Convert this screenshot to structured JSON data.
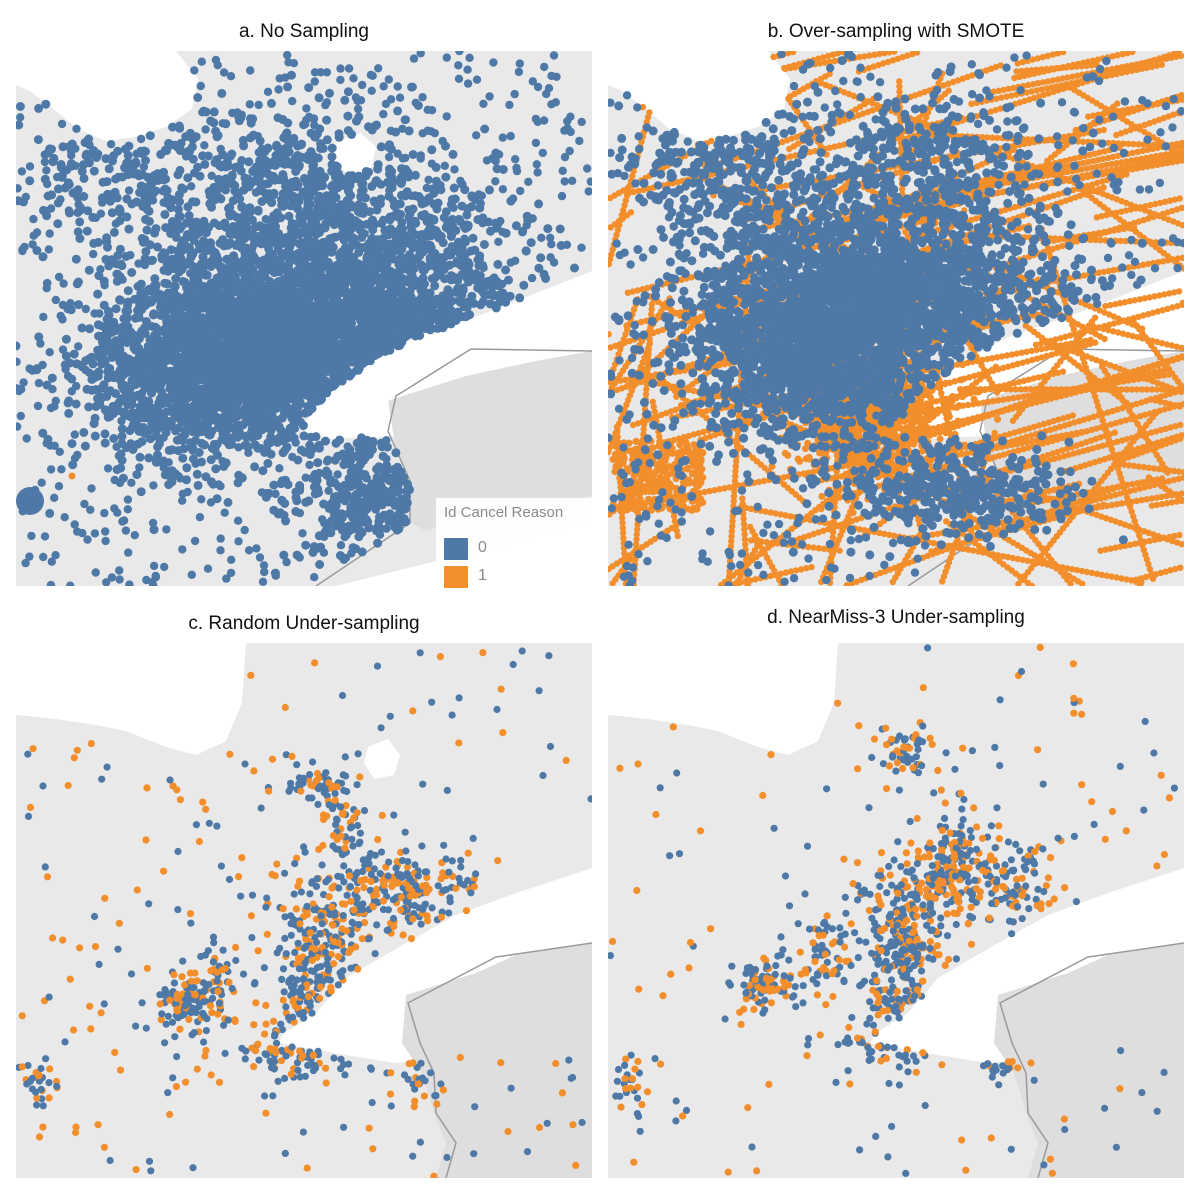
{
  "figure": {
    "panels": [
      {
        "id": "a",
        "title": "a. No Sampling"
      },
      {
        "id": "b",
        "title": "b. Over-sampling with SMOTE"
      },
      {
        "id": "c",
        "title": "c. Random Under-sampling"
      },
      {
        "id": "d",
        "title": "d. NearMiss-3 Under-sampling"
      }
    ]
  },
  "legend": {
    "title": "Id Cancel Reason",
    "items": [
      {
        "label": "0",
        "color": "#4e79a7"
      },
      {
        "label": "1",
        "color": "#f28e2b"
      }
    ]
  },
  "colors": {
    "class0": "#4e79a7",
    "class1": "#f28e2b",
    "land": "#e9e9e9",
    "water": "#ffffff",
    "border": "#9a9a9a"
  }
}
